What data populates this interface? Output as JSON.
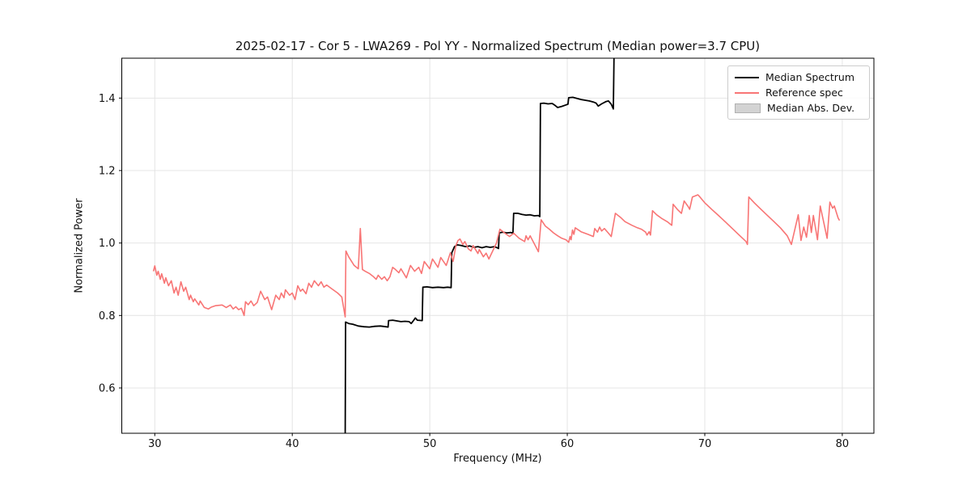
{
  "figure": {
    "title": "2025-02-17 - Cor 5 - LWA269 - Pol YY - Normalized Spectrum (Median power=3.7 CPU)",
    "xlabel": "Frequency (MHz)",
    "ylabel": "Normalized Power",
    "background_color": "#ffffff",
    "grid_color": "#e4e4e4",
    "frame_color": "#000000"
  },
  "chart_data": {
    "type": "line",
    "title": "2025-02-17 - Cor 5 - LWA269 - Pol YY - Normalized Spectrum (Median power=3.7 CPU)",
    "xlabel": "Frequency (MHz)",
    "ylabel": "Normalized Power",
    "xlim": [
      27.6,
      82.3
    ],
    "ylim": [
      0.475,
      1.51
    ],
    "xticks": [
      30,
      40,
      50,
      60,
      70,
      80
    ],
    "xtick_labels": [
      "30",
      "40",
      "50",
      "60",
      "70",
      "80"
    ],
    "yticks": [
      0.6,
      0.8,
      1.0,
      1.2,
      1.4
    ],
    "ytick_labels": [
      "0.6",
      "0.8",
      "1.0",
      "1.2",
      "1.4"
    ],
    "grid": true,
    "legend": {
      "position": "upper right",
      "entries": [
        {
          "label": "Median Spectrum",
          "swatch": "line",
          "color": "#000000"
        },
        {
          "label": "Reference spec",
          "swatch": "line",
          "color": "#f87575"
        },
        {
          "label": "Median Abs. Dev.",
          "swatch": "patch",
          "color": "#d3d3d3",
          "edge": "#b0b0b0"
        }
      ]
    },
    "series": [
      {
        "name": "Median Spectrum",
        "color": "#000000",
        "width": 1.8,
        "points": [
          [
            43.85,
            0.47
          ],
          [
            43.88,
            0.782
          ],
          [
            44.1,
            0.778
          ],
          [
            44.4,
            0.776
          ],
          [
            44.8,
            0.771
          ],
          [
            45.2,
            0.769
          ],
          [
            45.6,
            0.768
          ],
          [
            46.0,
            0.77
          ],
          [
            46.4,
            0.771
          ],
          [
            46.8,
            0.769
          ],
          [
            46.97,
            0.768
          ],
          [
            47.0,
            0.786
          ],
          [
            47.3,
            0.787
          ],
          [
            47.6,
            0.785
          ],
          [
            47.9,
            0.783
          ],
          [
            48.2,
            0.784
          ],
          [
            48.5,
            0.783
          ],
          [
            48.65,
            0.778
          ],
          [
            48.8,
            0.785
          ],
          [
            48.95,
            0.793
          ],
          [
            49.1,
            0.787
          ],
          [
            49.45,
            0.786
          ],
          [
            49.5,
            0.878
          ],
          [
            49.8,
            0.879
          ],
          [
            50.2,
            0.877
          ],
          [
            50.6,
            0.878
          ],
          [
            51.0,
            0.877
          ],
          [
            51.3,
            0.878
          ],
          [
            51.55,
            0.877
          ],
          [
            51.6,
            0.973
          ],
          [
            51.8,
            0.99
          ],
          [
            52.0,
            0.995
          ],
          [
            52.3,
            0.993
          ],
          [
            52.6,
            0.99
          ],
          [
            52.9,
            0.992
          ],
          [
            53.2,
            0.988
          ],
          [
            53.5,
            0.99
          ],
          [
            53.8,
            0.987
          ],
          [
            54.1,
            0.99
          ],
          [
            54.4,
            0.988
          ],
          [
            54.7,
            0.99
          ],
          [
            54.9,
            0.987
          ],
          [
            55.0,
            0.985
          ],
          [
            55.05,
            1.028
          ],
          [
            55.3,
            1.03
          ],
          [
            55.6,
            1.028
          ],
          [
            55.9,
            1.029
          ],
          [
            56.05,
            1.027
          ],
          [
            56.1,
            1.082
          ],
          [
            56.4,
            1.082
          ],
          [
            56.7,
            1.079
          ],
          [
            57.0,
            1.077
          ],
          [
            57.3,
            1.078
          ],
          [
            57.6,
            1.075
          ],
          [
            57.9,
            1.076
          ],
          [
            58.0,
            1.073
          ],
          [
            58.05,
            1.385
          ],
          [
            58.3,
            1.386
          ],
          [
            58.6,
            1.384
          ],
          [
            58.9,
            1.385
          ],
          [
            59.1,
            1.38
          ],
          [
            59.3,
            1.374
          ],
          [
            59.6,
            1.377
          ],
          [
            59.9,
            1.381
          ],
          [
            60.05,
            1.383
          ],
          [
            60.1,
            1.401
          ],
          [
            60.4,
            1.402
          ],
          [
            60.7,
            1.399
          ],
          [
            61.0,
            1.396
          ],
          [
            61.3,
            1.394
          ],
          [
            61.6,
            1.392
          ],
          [
            61.9,
            1.389
          ],
          [
            62.1,
            1.386
          ],
          [
            62.25,
            1.378
          ],
          [
            62.5,
            1.384
          ],
          [
            62.8,
            1.39
          ],
          [
            63.0,
            1.392
          ],
          [
            63.2,
            1.383
          ],
          [
            63.35,
            1.37
          ],
          [
            63.4,
            1.51
          ]
        ]
      },
      {
        "name": "Reference spec",
        "color": "#f87575",
        "width": 1.6,
        "points": [
          [
            29.9,
            0.922
          ],
          [
            30.0,
            0.937
          ],
          [
            30.15,
            0.911
          ],
          [
            30.25,
            0.922
          ],
          [
            30.4,
            0.9
          ],
          [
            30.5,
            0.915
          ],
          [
            30.7,
            0.889
          ],
          [
            30.8,
            0.904
          ],
          [
            31.0,
            0.882
          ],
          [
            31.2,
            0.896
          ],
          [
            31.4,
            0.862
          ],
          [
            31.55,
            0.878
          ],
          [
            31.7,
            0.856
          ],
          [
            31.9,
            0.893
          ],
          [
            32.1,
            0.867
          ],
          [
            32.25,
            0.878
          ],
          [
            32.5,
            0.844
          ],
          [
            32.6,
            0.856
          ],
          [
            32.8,
            0.838
          ],
          [
            32.9,
            0.846
          ],
          [
            33.2,
            0.829
          ],
          [
            33.3,
            0.84
          ],
          [
            33.6,
            0.822
          ],
          [
            33.9,
            0.818
          ],
          [
            34.1,
            0.823
          ],
          [
            34.4,
            0.827
          ],
          [
            34.9,
            0.829
          ],
          [
            35.2,
            0.822
          ],
          [
            35.5,
            0.829
          ],
          [
            35.7,
            0.818
          ],
          [
            35.9,
            0.824
          ],
          [
            36.1,
            0.816
          ],
          [
            36.3,
            0.82
          ],
          [
            36.5,
            0.8
          ],
          [
            36.6,
            0.838
          ],
          [
            36.8,
            0.83
          ],
          [
            37.0,
            0.84
          ],
          [
            37.2,
            0.827
          ],
          [
            37.45,
            0.836
          ],
          [
            37.7,
            0.867
          ],
          [
            38.0,
            0.844
          ],
          [
            38.2,
            0.851
          ],
          [
            38.5,
            0.816
          ],
          [
            38.8,
            0.856
          ],
          [
            39.05,
            0.844
          ],
          [
            39.2,
            0.862
          ],
          [
            39.4,
            0.849
          ],
          [
            39.5,
            0.871
          ],
          [
            39.8,
            0.856
          ],
          [
            40.0,
            0.862
          ],
          [
            40.2,
            0.844
          ],
          [
            40.4,
            0.882
          ],
          [
            40.6,
            0.867
          ],
          [
            40.75,
            0.873
          ],
          [
            41.0,
            0.86
          ],
          [
            41.2,
            0.889
          ],
          [
            41.4,
            0.878
          ],
          [
            41.6,
            0.896
          ],
          [
            41.9,
            0.882
          ],
          [
            42.1,
            0.893
          ],
          [
            42.3,
            0.878
          ],
          [
            42.5,
            0.884
          ],
          [
            42.9,
            0.873
          ],
          [
            43.3,
            0.862
          ],
          [
            43.6,
            0.851
          ],
          [
            43.85,
            0.796
          ],
          [
            43.9,
            0.978
          ],
          [
            44.1,
            0.962
          ],
          [
            44.5,
            0.938
          ],
          [
            44.8,
            0.929
          ],
          [
            44.95,
            1.04
          ],
          [
            45.1,
            0.927
          ],
          [
            45.3,
            0.922
          ],
          [
            45.6,
            0.916
          ],
          [
            45.9,
            0.907
          ],
          [
            46.1,
            0.9
          ],
          [
            46.25,
            0.911
          ],
          [
            46.5,
            0.9
          ],
          [
            46.7,
            0.907
          ],
          [
            46.9,
            0.896
          ],
          [
            47.1,
            0.907
          ],
          [
            47.3,
            0.933
          ],
          [
            47.5,
            0.927
          ],
          [
            47.75,
            0.918
          ],
          [
            47.9,
            0.929
          ],
          [
            48.3,
            0.904
          ],
          [
            48.6,
            0.938
          ],
          [
            48.9,
            0.922
          ],
          [
            49.2,
            0.933
          ],
          [
            49.4,
            0.916
          ],
          [
            49.6,
            0.949
          ],
          [
            50.0,
            0.929
          ],
          [
            50.2,
            0.956
          ],
          [
            50.6,
            0.933
          ],
          [
            50.8,
            0.96
          ],
          [
            51.2,
            0.938
          ],
          [
            51.5,
            0.973
          ],
          [
            51.7,
            0.949
          ],
          [
            51.9,
            0.993
          ],
          [
            52.05,
            1.007
          ],
          [
            52.2,
            1.011
          ],
          [
            52.4,
            0.996
          ],
          [
            52.55,
            1.004
          ],
          [
            52.8,
            0.984
          ],
          [
            53.0,
            0.978
          ],
          [
            53.15,
            0.993
          ],
          [
            53.5,
            0.971
          ],
          [
            53.6,
            0.982
          ],
          [
            53.9,
            0.962
          ],
          [
            54.1,
            0.972
          ],
          [
            54.3,
            0.956
          ],
          [
            54.6,
            0.98
          ],
          [
            54.85,
            1.0
          ],
          [
            55.1,
            1.038
          ],
          [
            55.4,
            1.029
          ],
          [
            55.8,
            1.018
          ],
          [
            56.1,
            1.027
          ],
          [
            56.5,
            1.013
          ],
          [
            56.9,
            1.004
          ],
          [
            57.0,
            1.02
          ],
          [
            57.15,
            1.009
          ],
          [
            57.3,
            1.02
          ],
          [
            57.9,
            0.976
          ],
          [
            58.1,
            1.064
          ],
          [
            58.4,
            1.047
          ],
          [
            58.7,
            1.038
          ],
          [
            59.0,
            1.028
          ],
          [
            59.3,
            1.02
          ],
          [
            59.6,
            1.013
          ],
          [
            59.9,
            1.009
          ],
          [
            60.1,
            1.002
          ],
          [
            60.2,
            1.018
          ],
          [
            60.28,
            1.009
          ],
          [
            60.38,
            1.036
          ],
          [
            60.48,
            1.024
          ],
          [
            60.58,
            1.042
          ],
          [
            61.0,
            1.031
          ],
          [
            61.5,
            1.024
          ],
          [
            61.9,
            1.018
          ],
          [
            62.0,
            1.04
          ],
          [
            62.2,
            1.03
          ],
          [
            62.35,
            1.044
          ],
          [
            62.5,
            1.033
          ],
          [
            62.7,
            1.04
          ],
          [
            63.0,
            1.027
          ],
          [
            63.2,
            1.018
          ],
          [
            63.5,
            1.082
          ],
          [
            63.9,
            1.07
          ],
          [
            64.2,
            1.059
          ],
          [
            64.7,
            1.049
          ],
          [
            65.1,
            1.042
          ],
          [
            65.4,
            1.038
          ],
          [
            65.7,
            1.03
          ],
          [
            65.8,
            1.022
          ],
          [
            65.95,
            1.031
          ],
          [
            66.05,
            1.022
          ],
          [
            66.2,
            1.089
          ],
          [
            66.5,
            1.078
          ],
          [
            66.9,
            1.067
          ],
          [
            67.3,
            1.058
          ],
          [
            67.6,
            1.049
          ],
          [
            67.7,
            1.107
          ],
          [
            68.0,
            1.093
          ],
          [
            68.3,
            1.082
          ],
          [
            68.5,
            1.116
          ],
          [
            68.8,
            1.1
          ],
          [
            68.9,
            1.093
          ],
          [
            69.1,
            1.127
          ],
          [
            69.3,
            1.13
          ],
          [
            69.5,
            1.133
          ],
          [
            69.65,
            1.127
          ],
          [
            70.0,
            1.111
          ],
          [
            70.5,
            1.093
          ],
          [
            71.0,
            1.076
          ],
          [
            71.5,
            1.058
          ],
          [
            72.0,
            1.04
          ],
          [
            72.5,
            1.022
          ],
          [
            73.0,
            1.004
          ],
          [
            73.1,
            0.996
          ],
          [
            73.2,
            1.127
          ],
          [
            73.6,
            1.111
          ],
          [
            74.0,
            1.096
          ],
          [
            74.5,
            1.078
          ],
          [
            75.0,
            1.06
          ],
          [
            75.5,
            1.042
          ],
          [
            76.0,
            1.02
          ],
          [
            76.3,
            0.996
          ],
          [
            76.8,
            1.078
          ],
          [
            77.0,
            1.007
          ],
          [
            77.2,
            1.044
          ],
          [
            77.4,
            1.016
          ],
          [
            77.6,
            1.076
          ],
          [
            77.75,
            1.029
          ],
          [
            77.9,
            1.076
          ],
          [
            78.2,
            1.009
          ],
          [
            78.4,
            1.102
          ],
          [
            78.9,
            1.013
          ],
          [
            79.1,
            1.113
          ],
          [
            79.3,
            1.096
          ],
          [
            79.42,
            1.102
          ],
          [
            79.7,
            1.069
          ],
          [
            79.8,
            1.062
          ]
        ]
      },
      {
        "name": "Median Abs. Dev.",
        "color": "#d3d3d3",
        "type": "band",
        "points": []
      }
    ]
  }
}
